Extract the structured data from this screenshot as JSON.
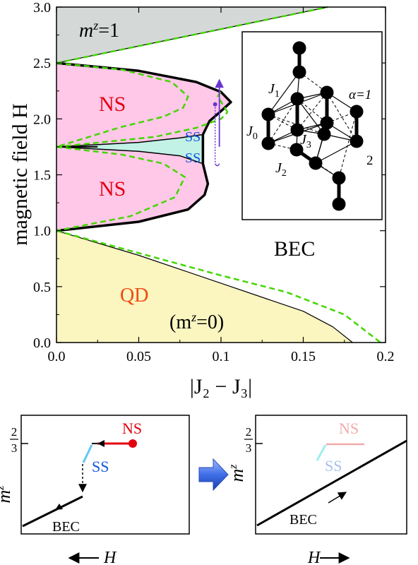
{
  "colors": {
    "m1": "#d4d9d8",
    "ns": "#ffc8e8",
    "ss": "#c2f2e6",
    "qd": "#fbf5c0",
    "dashed": "#43d600",
    "ns_text": "#e3000f",
    "ss_text": "#1155dd",
    "qd_text": "#f04a10",
    "purple": "#6a35ce",
    "ns_light": "#f3a9a9",
    "ss_light": "#a7c0ee",
    "ss_line_light": "#a0ecf0",
    "arrow_blue": "#3f6fe6"
  },
  "chart_data": [
    {
      "type": "area",
      "xlabel": "|J₂ − J₃|",
      "ylabel": "magnetic field H",
      "xlim": [
        0,
        0.2
      ],
      "ylim": [
        0,
        3.0
      ],
      "xticks": [
        "0.0",
        "0.05",
        "0.1",
        "0.15",
        "0.2"
      ],
      "yticks": [
        "0.0",
        "0.5",
        "1.0",
        "1.5",
        "2.0",
        "2.5",
        "3.0"
      ],
      "region_labels": {
        "m1": "m",
        "m1_sup": "z",
        "m1_rest": "=1",
        "ns_upper": "NS",
        "ns_lower": "NS",
        "ss_upper": "SS",
        "ss_lower": "SS",
        "bec": "BEC",
        "qd": "QD",
        "qd_sub_open": "(m",
        "qd_sub_sup": "z",
        "qd_sub_rest": "=0)"
      },
      "boundaries": {
        "m1_lower": [
          [
            0,
            2.5
          ],
          [
            0.165,
            3.0
          ]
        ],
        "qd_upper": [
          [
            0,
            1.0
          ],
          [
            0.05,
            0.78
          ],
          [
            0.1,
            0.53
          ],
          [
            0.15,
            0.28
          ],
          [
            0.168,
            0.14
          ],
          [
            0.18,
            0.0
          ]
        ],
        "ns_outer_upper": [
          [
            0,
            2.5
          ],
          [
            0.05,
            2.43
          ],
          [
            0.085,
            2.33
          ],
          [
            0.1,
            2.24
          ],
          [
            0.106,
            2.15
          ],
          [
            0.1,
            2.07
          ],
          [
            0.093,
            1.98
          ],
          [
            0.089,
            1.86
          ]
        ],
        "ns_outer_lower": [
          [
            0,
            1.0
          ],
          [
            0.05,
            1.08
          ],
          [
            0.08,
            1.19
          ],
          [
            0.09,
            1.32
          ],
          [
            0.092,
            1.42
          ],
          [
            0.089,
            1.6
          ],
          [
            0.089,
            1.86
          ]
        ],
        "ns_ss_upper": [
          [
            0,
            1.75
          ],
          [
            0.05,
            1.79
          ],
          [
            0.075,
            1.83
          ],
          [
            0.089,
            1.86
          ]
        ],
        "ns_ss_lower": [
          [
            0,
            1.75
          ],
          [
            0.05,
            1.71
          ],
          [
            0.075,
            1.67
          ],
          [
            0.089,
            1.6
          ]
        ],
        "dashed_m1": [
          [
            0,
            2.5
          ],
          [
            0.165,
            3.0
          ]
        ],
        "dashed_qd": [
          [
            0,
            1.0
          ],
          [
            0.05,
            0.8
          ],
          [
            0.1,
            0.6
          ],
          [
            0.14,
            0.45
          ],
          [
            0.175,
            0.25
          ],
          [
            0.197,
            0.0
          ]
        ],
        "dashed_ns_upper": [
          [
            0,
            2.5
          ],
          [
            0.04,
            2.44
          ],
          [
            0.07,
            2.33
          ],
          [
            0.08,
            2.2
          ],
          [
            0.077,
            2.1
          ],
          [
            0.065,
            2.02
          ],
          [
            0.04,
            1.93
          ],
          [
            0,
            1.75
          ]
        ],
        "dashed_ns_lower": [
          [
            0,
            1.75
          ],
          [
            0.04,
            1.68
          ],
          [
            0.065,
            1.6
          ],
          [
            0.078,
            1.48
          ],
          [
            0.072,
            1.3
          ],
          [
            0.045,
            1.13
          ],
          [
            0,
            1.0
          ]
        ],
        "dashed_ss": [
          [
            0,
            1.75
          ],
          [
            0.06,
            1.84
          ],
          [
            0.085,
            1.92
          ],
          [
            0.1,
            2.0
          ],
          [
            0.104,
            2.06
          ]
        ],
        "dashed_ss2": [
          [
            0.104,
            2.06
          ],
          [
            0.098,
            2.2
          ],
          [
            0.1,
            2.25
          ]
        ]
      },
      "purple_path": {
        "x": 0.099,
        "y_start": 1.75,
        "y_top": 2.35,
        "y_dot": 2.13
      }
    },
    {
      "type": "line",
      "ylabel": "m",
      "ylabel_sup": "z",
      "ytick": "2/3",
      "ytick_num": "2",
      "ytick_den": "3",
      "xlabel": "H",
      "labels": {
        "ns": "NS",
        "ss": "SS",
        "bec": "BEC"
      }
    },
    {
      "type": "line",
      "ylabel": "m",
      "ylabel_sup": "z",
      "ytick": "2/3",
      "ytick_num": "2",
      "ytick_den": "3",
      "xlabel": "H",
      "labels": {
        "ns": "NS",
        "ss": "SS",
        "bec": "BEC"
      }
    }
  ],
  "inset": {
    "labels": {
      "j1": "J",
      "j1_sub": "1",
      "j0": "J",
      "j0_sub": "0",
      "j3": "J",
      "j3_sub": "3",
      "j2": "J",
      "j2_sub": "2",
      "alpha": "α=1",
      "two": "2"
    }
  }
}
